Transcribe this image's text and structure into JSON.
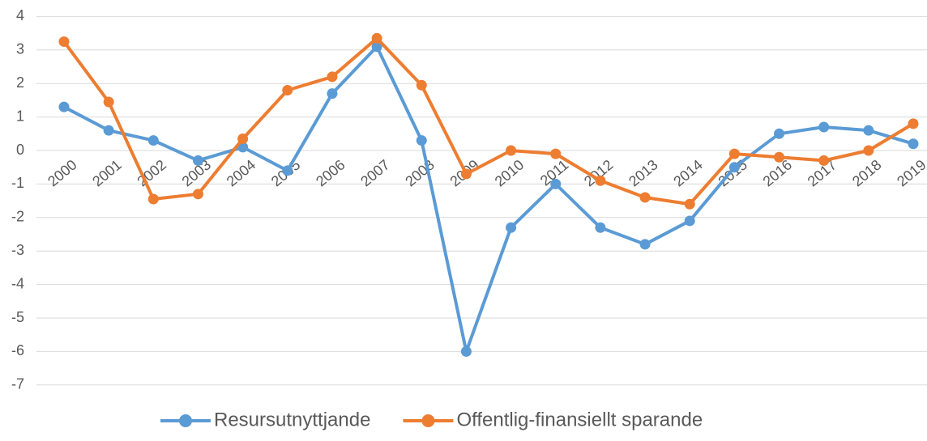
{
  "chart_data": {
    "type": "line",
    "categories": [
      "2000",
      "2001",
      "2002",
      "2003",
      "2004",
      "2005",
      "2006",
      "2007",
      "2008",
      "2009",
      "2010",
      "2011",
      "2012",
      "2013",
      "2014",
      "2015",
      "2016",
      "2017",
      "2018",
      "2019"
    ],
    "series": [
      {
        "name": "Resursutnyttjande",
        "color": "#5b9bd5",
        "values": [
          1.3,
          0.6,
          0.3,
          -0.3,
          0.1,
          -0.6,
          1.7,
          3.1,
          0.3,
          -6.0,
          -2.3,
          -1.0,
          -2.3,
          -2.8,
          -2.1,
          -0.5,
          0.5,
          0.7,
          0.6,
          0.2
        ]
      },
      {
        "name": "Offentlig-finansiellt sparande",
        "color": "#ed7d31",
        "values": [
          3.25,
          1.45,
          -1.45,
          -1.3,
          0.35,
          1.8,
          2.2,
          3.35,
          1.95,
          -0.7,
          0.0,
          -0.1,
          -0.9,
          -1.4,
          -1.6,
          -0.1,
          -0.2,
          -0.3,
          0.0,
          0.8
        ]
      }
    ],
    "ylim": [
      -7,
      4
    ],
    "yticks": [
      4,
      3,
      2,
      1,
      0,
      -1,
      -2,
      -3,
      -4,
      -5,
      -6,
      -7
    ],
    "grid": true,
    "legend": "bottom"
  }
}
